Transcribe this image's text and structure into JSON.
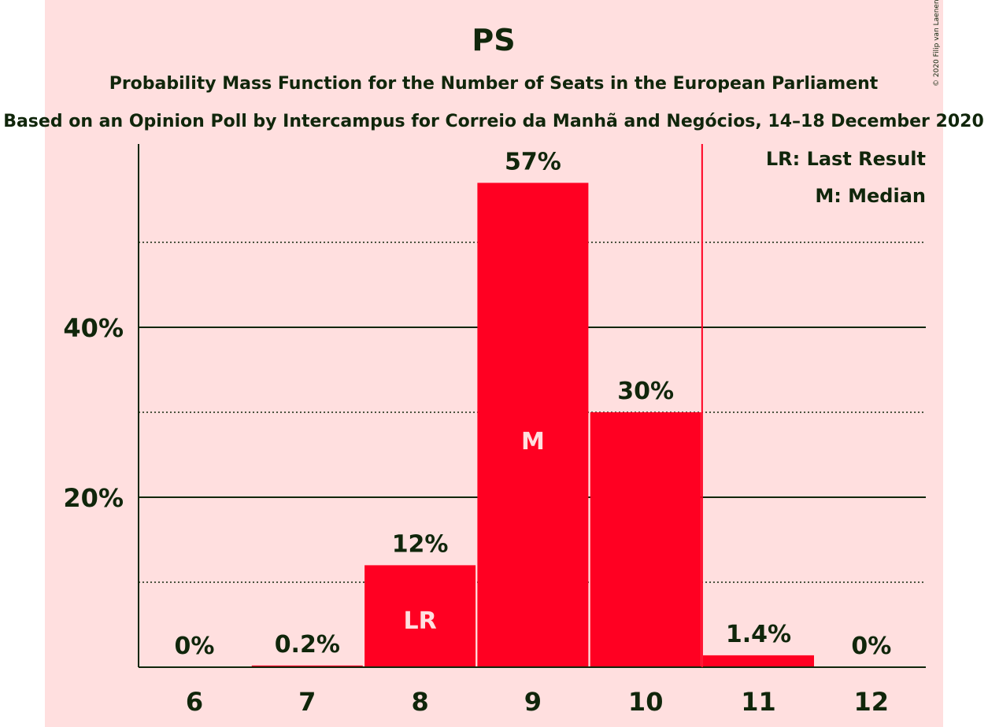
{
  "chart_data": {
    "type": "bar",
    "title": "PS",
    "subtitle": "Probability Mass Function for the Number of Seats in the European Parliament",
    "subtitle2": "Based on an Opinion Poll by Intercampus for Correio da Manhã and Negócios, 14–18 December 2020",
    "categories": [
      "6",
      "7",
      "8",
      "9",
      "10",
      "11",
      "12"
    ],
    "values": [
      0,
      0.2,
      12,
      57,
      30,
      1.4,
      0
    ],
    "value_labels": [
      "0%",
      "0.2%",
      "12%",
      "57%",
      "30%",
      "1.4%",
      "0%"
    ],
    "yticks": [
      20,
      40
    ],
    "ytick_labels": [
      "20%",
      "40%"
    ],
    "ylim": [
      0,
      61.5
    ],
    "gridlines_dotted": [
      10,
      30,
      50
    ],
    "gridlines_solid": [
      20,
      40
    ],
    "bar_annotations": {
      "8": "LR",
      "9": "M"
    },
    "last_result_line_after": "10",
    "legend": [
      "LR: Last Result",
      "M: Median"
    ],
    "legend_position": "top-right",
    "colors": {
      "background": "#ffdfdf",
      "bar": "#ff0022",
      "text": "#10260b",
      "last_result_line": "#ff0022"
    },
    "copyright": "© 2020 Filip van Laenen"
  }
}
